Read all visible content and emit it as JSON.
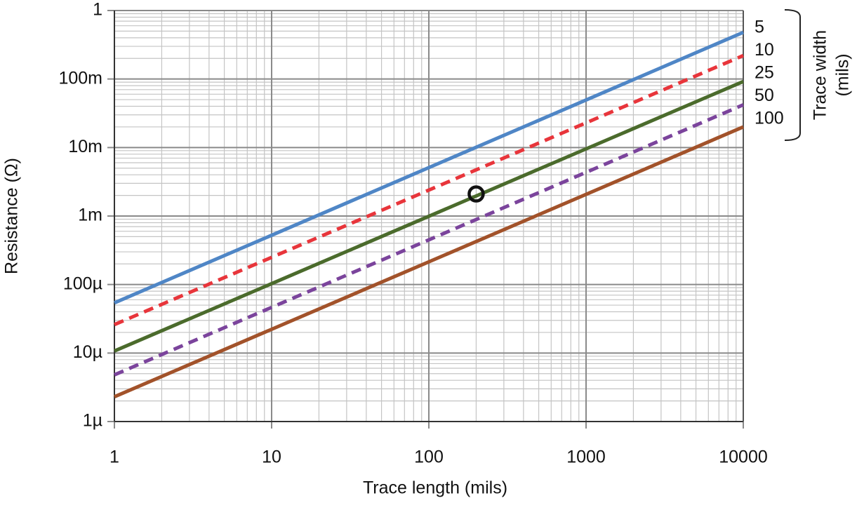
{
  "chart_data": {
    "type": "line",
    "x_label": "Trace length (mils)",
    "y_label": "Resistance (Ω)",
    "log_x": true,
    "log_y": true,
    "grid": true,
    "minor_grid": true,
    "xlim": [
      1,
      10000
    ],
    "ylim": [
      1e-06,
      1
    ],
    "xticks": [
      1,
      10,
      100,
      1000,
      10000
    ],
    "yticks": [
      {
        "value": 1e-06,
        "label": "1µ"
      },
      {
        "value": 1e-05,
        "label": "10µ"
      },
      {
        "value": 0.0001,
        "label": "100µ"
      },
      {
        "value": 0.001,
        "label": "1m"
      },
      {
        "value": 0.01,
        "label": "10m"
      },
      {
        "value": 0.1,
        "label": "100m"
      },
      1
    ],
    "legend_title": [
      "Trace width",
      "(mils)"
    ],
    "legend_position": "right",
    "x": [
      1,
      10000
    ],
    "series": [
      {
        "name": "5",
        "color": "#4f86c6",
        "dashed": false,
        "values": [
          5.4e-05,
          0.48
        ]
      },
      {
        "name": "10",
        "color": "#e8353b",
        "dashed": true,
        "values": [
          2.6e-05,
          0.22
        ]
      },
      {
        "name": "25",
        "color": "#4b6b2c",
        "dashed": false,
        "values": [
          1.07e-05,
          0.092
        ]
      },
      {
        "name": "50",
        "color": "#7b449c",
        "dashed": true,
        "values": [
          4.8e-06,
          0.042
        ]
      },
      {
        "name": "100",
        "color": "#a2522a",
        "dashed": false,
        "values": [
          2.3e-06,
          0.02
        ]
      }
    ],
    "marker": {
      "x": 200,
      "y": 0.0021
    }
  }
}
